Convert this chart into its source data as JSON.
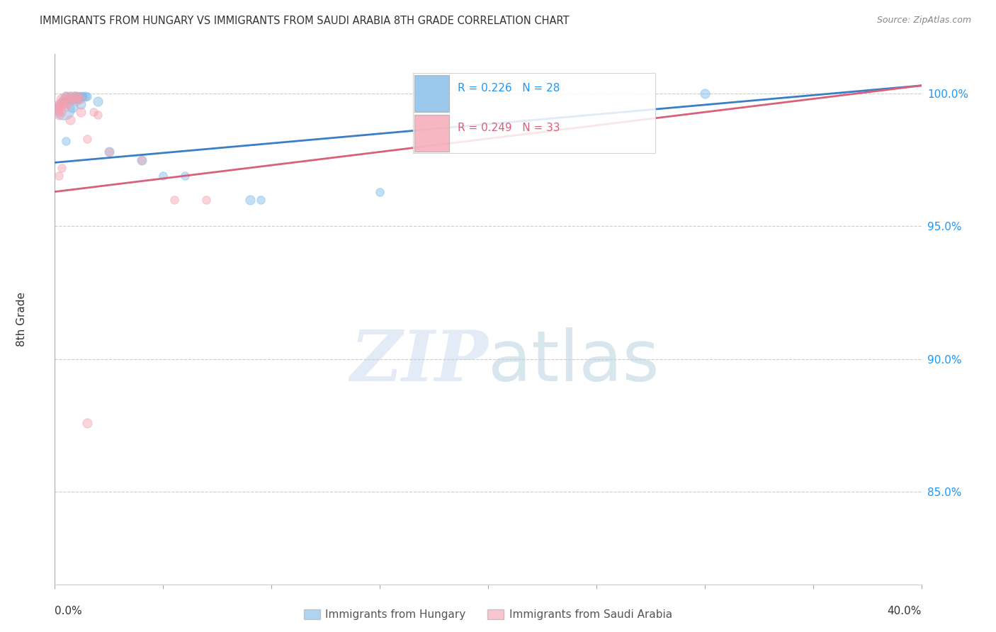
{
  "title": "IMMIGRANTS FROM HUNGARY VS IMMIGRANTS FROM SAUDI ARABIA 8TH GRADE CORRELATION CHART",
  "source": "Source: ZipAtlas.com",
  "ylabel": "8th Grade",
  "y_ticks": [
    0.85,
    0.9,
    0.95,
    1.0
  ],
  "y_tick_labels": [
    "85.0%",
    "90.0%",
    "95.0%",
    "100.0%"
  ],
  "xlim": [
    0.0,
    0.4
  ],
  "ylim": [
    0.815,
    1.015
  ],
  "legend_blue_r": "R = 0.226",
  "legend_blue_n": "N = 28",
  "legend_pink_r": "R = 0.249",
  "legend_pink_n": "N = 33",
  "legend_blue_label": "Immigrants from Hungary",
  "legend_pink_label": "Immigrants from Saudi Arabia",
  "blue_color": "#7ab8e8",
  "pink_color": "#f5a0b0",
  "trend_blue_color": "#3a7ec6",
  "trend_pink_color": "#d9607a",
  "blue_points": [
    [
      0.005,
      0.999,
      8
    ],
    [
      0.007,
      0.999,
      8
    ],
    [
      0.009,
      0.999,
      8
    ],
    [
      0.01,
      0.999,
      8
    ],
    [
      0.011,
      0.999,
      7
    ],
    [
      0.012,
      0.999,
      8
    ],
    [
      0.013,
      0.999,
      7
    ],
    [
      0.014,
      0.999,
      8
    ],
    [
      0.015,
      0.999,
      7
    ],
    [
      0.008,
      0.998,
      8
    ],
    [
      0.006,
      0.998,
      7
    ],
    [
      0.01,
      0.998,
      7
    ],
    [
      0.011,
      0.998,
      7
    ],
    [
      0.003,
      0.997,
      7
    ],
    [
      0.004,
      0.997,
      7
    ],
    [
      0.012,
      0.996,
      8
    ],
    [
      0.02,
      0.997,
      8
    ],
    [
      0.008,
      0.995,
      9
    ],
    [
      0.004,
      0.994,
      18
    ],
    [
      0.025,
      0.978,
      8
    ],
    [
      0.05,
      0.969,
      7
    ],
    [
      0.06,
      0.969,
      7
    ],
    [
      0.09,
      0.96,
      8
    ],
    [
      0.095,
      0.96,
      7
    ],
    [
      0.15,
      0.963,
      7
    ],
    [
      0.3,
      1.0,
      8
    ],
    [
      0.005,
      0.982,
      7
    ],
    [
      0.04,
      0.975,
      8
    ]
  ],
  "pink_points": [
    [
      0.005,
      0.999,
      8
    ],
    [
      0.007,
      0.999,
      8
    ],
    [
      0.009,
      0.999,
      8
    ],
    [
      0.01,
      0.999,
      7
    ],
    [
      0.011,
      0.999,
      7
    ],
    [
      0.012,
      0.998,
      7
    ],
    [
      0.003,
      0.998,
      9
    ],
    [
      0.004,
      0.998,
      8
    ],
    [
      0.008,
      0.998,
      7
    ],
    [
      0.006,
      0.997,
      9
    ],
    [
      0.01,
      0.997,
      7
    ],
    [
      0.002,
      0.996,
      8
    ],
    [
      0.003,
      0.996,
      7
    ],
    [
      0.004,
      0.996,
      7
    ],
    [
      0.001,
      0.995,
      8
    ],
    [
      0.002,
      0.995,
      7
    ],
    [
      0.005,
      0.995,
      7
    ],
    [
      0.001,
      0.994,
      9
    ],
    [
      0.002,
      0.993,
      7
    ],
    [
      0.003,
      0.993,
      7
    ],
    [
      0.002,
      0.992,
      8
    ],
    [
      0.012,
      0.993,
      8
    ],
    [
      0.018,
      0.993,
      7
    ],
    [
      0.02,
      0.992,
      7
    ],
    [
      0.007,
      0.99,
      8
    ],
    [
      0.015,
      0.983,
      7
    ],
    [
      0.055,
      0.96,
      7
    ],
    [
      0.07,
      0.96,
      7
    ],
    [
      0.025,
      0.978,
      7
    ],
    [
      0.003,
      0.972,
      7
    ],
    [
      0.002,
      0.969,
      7
    ],
    [
      0.04,
      0.975,
      7
    ],
    [
      0.015,
      0.876,
      8
    ]
  ],
  "blue_trend_x": [
    0.0,
    0.4
  ],
  "blue_trend_y": [
    0.974,
    1.003
  ],
  "pink_trend_x": [
    0.0,
    0.4
  ],
  "pink_trend_y": [
    0.963,
    1.003
  ]
}
